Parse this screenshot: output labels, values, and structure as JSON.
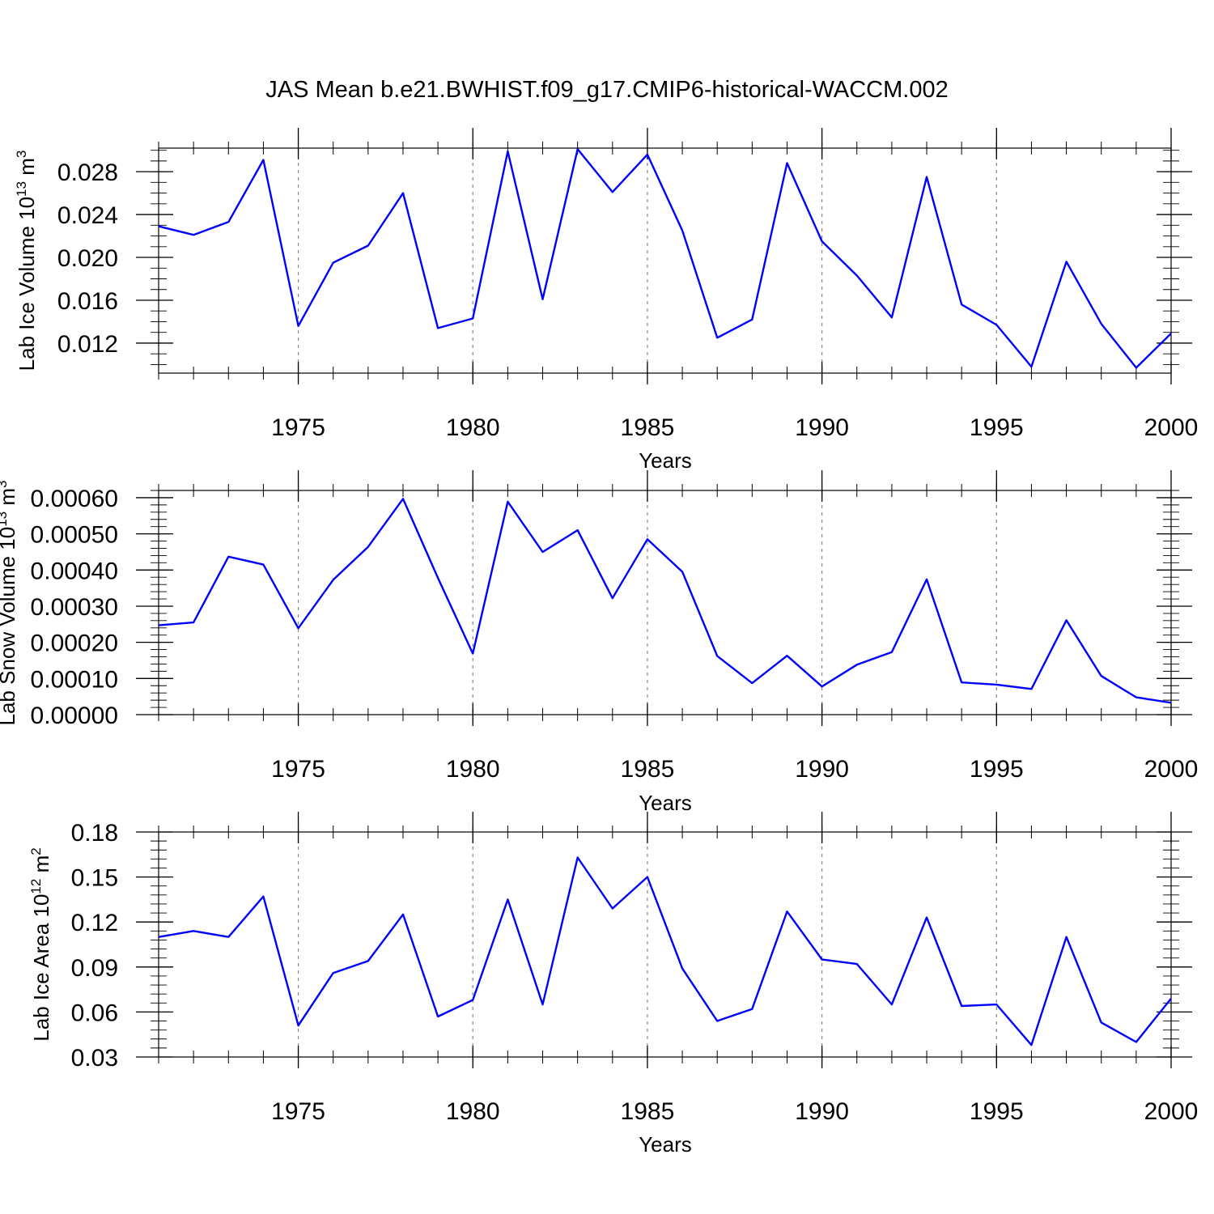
{
  "figure_title": "JAS Mean b.e21.BWHIST.f09_g17.CMIP6-historical-WACCM.002",
  "colors": {
    "line": "#0000ff",
    "axis": "#000000",
    "gridline": "#888888",
    "background": "#ffffff"
  },
  "chart_data": [
    {
      "type": "line",
      "name": "lab-ice-volume",
      "ylabel_main": "Lab Ice Volume 10",
      "ylabel_sup": "13",
      "ylabel_unit": " m",
      "ylabel_unit_sup": "3",
      "xlabel": "Years",
      "xlim": [
        1971,
        2000
      ],
      "ylim": [
        0.0092,
        0.0302
      ],
      "xticks": [
        1975,
        1980,
        1985,
        1990,
        1995,
        2000
      ],
      "xtick_labels": [
        "1975",
        "1980",
        "1985",
        "1990",
        "1995",
        "2000"
      ],
      "yticks": [
        0.012,
        0.016,
        0.02,
        0.024,
        0.028
      ],
      "ytick_labels": [
        "0.012",
        "0.016",
        "0.020",
        "0.024",
        "0.028"
      ],
      "x_minor_step": 1,
      "y_minor_step": 0.001,
      "vertical_gridlines": [
        1975,
        1980,
        1985,
        1990,
        1995
      ],
      "series": [
        {
          "name": "Lab Ice Volume",
          "x": [
            1971,
            1972,
            1973,
            1974,
            1975,
            1976,
            1977,
            1978,
            1979,
            1980,
            1981,
            1982,
            1983,
            1984,
            1985,
            1986,
            1987,
            1988,
            1989,
            1990,
            1991,
            1992,
            1993,
            1994,
            1995,
            1996,
            1997,
            1998,
            1999,
            2000
          ],
          "values": [
            0.0229,
            0.0221,
            0.0233,
            0.0291,
            0.0136,
            0.0195,
            0.0211,
            0.026,
            0.0134,
            0.0143,
            0.0299,
            0.0161,
            0.0301,
            0.0261,
            0.0296,
            0.0225,
            0.0125,
            0.0142,
            0.0288,
            0.0215,
            0.0183,
            0.0144,
            0.0275,
            0.0156,
            0.0137,
            0.0098,
            0.0196,
            0.0138,
            0.0097,
            0.0129
          ]
        }
      ]
    },
    {
      "type": "line",
      "name": "lab-snow-volume",
      "ylabel_main": "Lab Snow Volume 10",
      "ylabel_sup": "13",
      "ylabel_unit": " m",
      "ylabel_unit_sup": "3",
      "xlabel": "Years",
      "xlim": [
        1971,
        2000
      ],
      "ylim": [
        0.0,
        0.00062
      ],
      "xticks": [
        1975,
        1980,
        1985,
        1990,
        1995,
        2000
      ],
      "xtick_labels": [
        "1975",
        "1980",
        "1985",
        "1990",
        "1995",
        "2000"
      ],
      "yticks": [
        0.0,
        0.0001,
        0.0002,
        0.0003,
        0.0004,
        0.0005,
        0.0006
      ],
      "ytick_labels": [
        "0.00000",
        "0.00010",
        "0.00020",
        "0.00030",
        "0.00040",
        "0.00050",
        "0.00060"
      ],
      "x_minor_step": 1,
      "y_minor_step": 2e-05,
      "vertical_gridlines": [
        1975,
        1980,
        1985,
        1990,
        1995
      ],
      "series": [
        {
          "name": "Lab Snow Volume",
          "x": [
            1971,
            1972,
            1973,
            1974,
            1975,
            1976,
            1977,
            1978,
            1979,
            1980,
            1981,
            1982,
            1983,
            1984,
            1985,
            1986,
            1987,
            1988,
            1989,
            1990,
            1991,
            1992,
            1993,
            1994,
            1995,
            1996,
            1997,
            1998,
            1999,
            2000
          ],
          "values": [
            0.000247,
            0.000255,
            0.000437,
            0.000415,
            0.000239,
            0.000373,
            0.000464,
            0.000597,
            0.000378,
            0.000169,
            0.000589,
            0.00045,
            0.00051,
            0.000322,
            0.000485,
            0.000395,
            0.000162,
            8.7e-05,
            0.000163,
            7.8e-05,
            0.000138,
            0.000173,
            0.000374,
            8.9e-05,
            8.3e-05,
            7.1e-05,
            0.000261,
            0.000107,
            4.8e-05,
            3.3e-05
          ]
        }
      ]
    },
    {
      "type": "line",
      "name": "lab-ice-area",
      "ylabel_main": "Lab Ice Area 10",
      "ylabel_sup": "12",
      "ylabel_unit": " m",
      "ylabel_unit_sup": "2",
      "xlabel": "Years",
      "xlim": [
        1971,
        2000
      ],
      "ylim": [
        0.03,
        0.18
      ],
      "xticks": [
        1975,
        1980,
        1985,
        1990,
        1995,
        2000
      ],
      "xtick_labels": [
        "1975",
        "1980",
        "1985",
        "1990",
        "1995",
        "2000"
      ],
      "yticks": [
        0.03,
        0.06,
        0.09,
        0.12,
        0.15,
        0.18
      ],
      "ytick_labels": [
        "0.03",
        "0.06",
        "0.09",
        "0.12",
        "0.15",
        "0.18"
      ],
      "x_minor_step": 1,
      "y_minor_step": 0.006,
      "vertical_gridlines": [
        1975,
        1980,
        1985,
        1990,
        1995
      ],
      "series": [
        {
          "name": "Lab Ice Area",
          "x": [
            1971,
            1972,
            1973,
            1974,
            1975,
            1976,
            1977,
            1978,
            1979,
            1980,
            1981,
            1982,
            1983,
            1984,
            1985,
            1986,
            1987,
            1988,
            1989,
            1990,
            1991,
            1992,
            1993,
            1994,
            1995,
            1996,
            1997,
            1998,
            1999,
            2000
          ],
          "values": [
            0.11,
            0.114,
            0.11,
            0.137,
            0.051,
            0.086,
            0.094,
            0.125,
            0.057,
            0.068,
            0.135,
            0.065,
            0.163,
            0.129,
            0.15,
            0.089,
            0.054,
            0.062,
            0.127,
            0.095,
            0.092,
            0.065,
            0.123,
            0.064,
            0.065,
            0.038,
            0.11,
            0.053,
            0.04,
            0.069
          ]
        }
      ]
    }
  ]
}
